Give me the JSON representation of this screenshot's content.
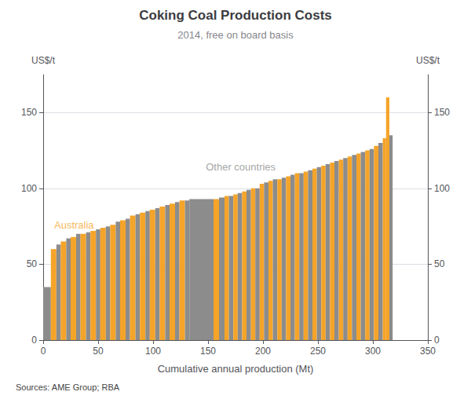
{
  "chart_data": {
    "type": "bar",
    "title": "Coking Coal Production Costs",
    "subtitle": "2014, free on board basis",
    "xlabel": "Cumulative annual production (Mt)",
    "ylabel": "US$/t",
    "y2label": "US$/t",
    "source": "Sources: AME Group; RBA",
    "x": [
      0,
      7,
      12,
      16,
      21,
      25,
      30,
      34,
      39,
      43,
      48,
      52,
      57,
      61,
      66,
      70,
      75,
      79,
      84,
      88,
      93,
      97,
      102,
      106,
      111,
      115,
      120,
      124,
      129,
      133,
      155,
      160,
      165,
      169,
      173,
      177,
      181,
      185,
      189,
      193,
      197,
      201,
      205,
      209,
      213,
      217,
      221,
      225,
      229,
      233,
      237,
      241,
      245,
      249,
      253,
      257,
      261,
      265,
      269,
      273,
      277,
      281,
      285,
      289,
      293,
      297,
      301,
      305,
      309,
      312,
      315
    ],
    "widths": [
      7,
      5,
      4,
      5,
      4,
      5,
      4,
      5,
      4,
      5,
      4,
      5,
      4,
      5,
      4,
      5,
      4,
      5,
      4,
      5,
      4,
      5,
      4,
      5,
      4,
      5,
      4,
      5,
      4,
      22,
      5,
      5,
      4,
      4,
      4,
      4,
      4,
      4,
      4,
      4,
      4,
      4,
      4,
      4,
      4,
      4,
      4,
      4,
      4,
      4,
      4,
      4,
      4,
      4,
      4,
      4,
      4,
      4,
      4,
      4,
      4,
      4,
      4,
      4,
      4,
      4,
      4,
      4,
      3,
      3,
      3
    ],
    "values": [
      35,
      60,
      63,
      65,
      67,
      68,
      70,
      70,
      71,
      72,
      73,
      74,
      75,
      76,
      78,
      79,
      80,
      82,
      83,
      84,
      85,
      86,
      87,
      88,
      89,
      90,
      91,
      92,
      92,
      93,
      93,
      94,
      95,
      95,
      96,
      97,
      98,
      99,
      100,
      100,
      103,
      104,
      105,
      106,
      106,
      107,
      108,
      109,
      110,
      110,
      111,
      112,
      113,
      114,
      115,
      116,
      117,
      118,
      119,
      120,
      121,
      122,
      123,
      124,
      125,
      126,
      128,
      130,
      133,
      160,
      135
    ],
    "colors": [
      "#8c8c8c",
      "#f5a42a",
      "#8c8c8c",
      "#f5a42a",
      "#8c8c8c",
      "#f5a42a",
      "#8c8c8c",
      "#f5a42a",
      "#8c8c8c",
      "#f5a42a",
      "#8c8c8c",
      "#f5a42a",
      "#8c8c8c",
      "#f5a42a",
      "#8c8c8c",
      "#f5a42a",
      "#8c8c8c",
      "#f5a42a",
      "#8c8c8c",
      "#f5a42a",
      "#8c8c8c",
      "#f5a42a",
      "#8c8c8c",
      "#f5a42a",
      "#8c8c8c",
      "#f5a42a",
      "#8c8c8c",
      "#f5a42a",
      "#8c8c8c",
      "#8c8c8c",
      "#f5a42a",
      "#8c8c8c",
      "#f5a42a",
      "#8c8c8c",
      "#f5a42a",
      "#8c8c8c",
      "#f5a42a",
      "#8c8c8c",
      "#f5a42a",
      "#8c8c8c",
      "#f5a42a",
      "#8c8c8c",
      "#f5a42a",
      "#8c8c8c",
      "#f5a42a",
      "#8c8c8c",
      "#f5a42a",
      "#8c8c8c",
      "#f5a42a",
      "#8c8c8c",
      "#f5a42a",
      "#8c8c8c",
      "#f5a42a",
      "#8c8c8c",
      "#f5a42a",
      "#8c8c8c",
      "#f5a42a",
      "#8c8c8c",
      "#f5a42a",
      "#8c8c8c",
      "#f5a42a",
      "#8c8c8c",
      "#f5a42a",
      "#8c8c8c",
      "#f5a42a",
      "#8c8c8c",
      "#f5a42a",
      "#8c8c8c",
      "#f5a42a",
      "#f5a42a",
      "#8c8c8c"
    ],
    "xlim": [
      0,
      350
    ],
    "xticks": [
      0,
      50,
      100,
      150,
      200,
      250,
      300,
      350
    ],
    "ylim": [
      0,
      175
    ],
    "yticks": [
      0,
      50,
      100,
      150
    ],
    "y2lim": [
      0,
      175
    ],
    "y2ticks": [
      0,
      50,
      100,
      150
    ],
    "grid": true,
    "annotations": [
      {
        "text": "Australia",
        "x": 10,
        "y": 76,
        "color": "#f5a42a"
      },
      {
        "text": "Other countries",
        "x": 148,
        "y": 114,
        "color": "#8c8c8c"
      }
    ]
  }
}
